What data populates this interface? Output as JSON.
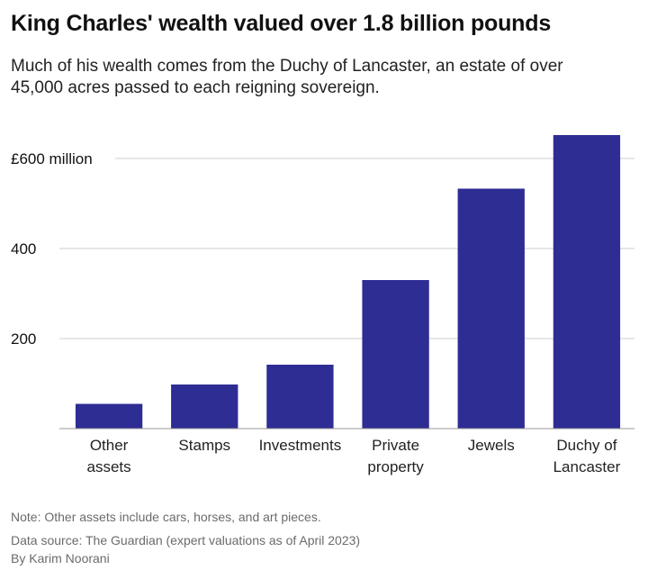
{
  "header": {
    "title": "King Charles' wealth valued over 1.8 billion pounds",
    "subtitle": "Much of his wealth comes from the Duchy of Lancaster, an estate of over 45,000 acres passed to each reigning sovereign."
  },
  "chart_data": {
    "type": "bar",
    "title": "King Charles' wealth valued over 1.8 billion pounds",
    "xlabel": "",
    "ylabel": "",
    "unit": "million pounds",
    "categories": [
      [
        "Other",
        "assets"
      ],
      [
        "Stamps"
      ],
      [
        "Investments"
      ],
      [
        "Private",
        "property"
      ],
      [
        "Jewels"
      ],
      [
        "Duchy of",
        "Lancaster"
      ]
    ],
    "values": [
      55,
      98,
      142,
      330,
      533,
      652
    ],
    "ylim": [
      0,
      660
    ],
    "yticks": [
      200,
      400,
      600
    ],
    "ytick_labels": [
      "200",
      "400",
      "£600 million"
    ],
    "grid": true,
    "bar_color": "#2e2d94",
    "grid_color": "#cccccc",
    "baseline_color": "#999999"
  },
  "footer": {
    "note": "Note: Other assets include cars, horses, and art pieces.",
    "source": "Data source: The Guardian (expert valuations as of April 2023)",
    "author": "By Karim Noorani"
  }
}
